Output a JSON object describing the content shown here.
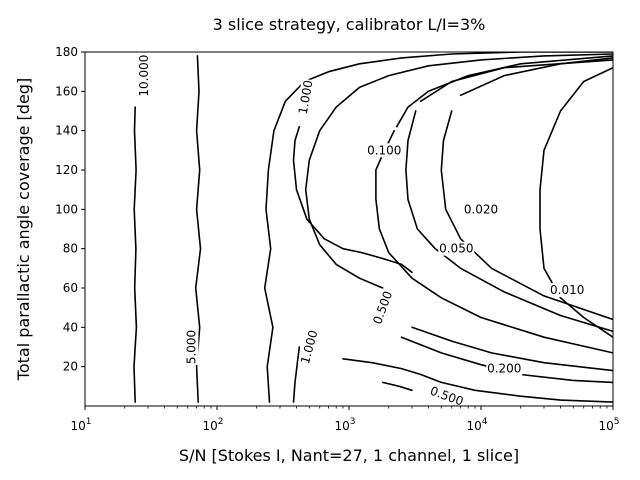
{
  "chart_data": {
    "type": "contour",
    "title": "3 slice strategy, calibrator L/I=3%",
    "xlabel": "S/N [Stokes I, Nant=27, 1 channel, 1 slice]",
    "ylabel": "Total parallactic angle coverage [deg]",
    "xscale": "log",
    "xlim": [
      10,
      100000
    ],
    "ylim": [
      0,
      180
    ],
    "xticks": [
      {
        "value": 10,
        "label": "10",
        "exp": "1"
      },
      {
        "value": 100,
        "label": "10",
        "exp": "2"
      },
      {
        "value": 1000,
        "label": "10",
        "exp": "3"
      },
      {
        "value": 10000,
        "label": "10",
        "exp": "4"
      },
      {
        "value": 100000,
        "label": "10",
        "exp": "5"
      }
    ],
    "yticks": [
      20,
      40,
      60,
      80,
      100,
      120,
      140,
      160,
      180
    ],
    "grid": false,
    "levels": [
      {
        "label": "10.000",
        "segments": [
          [
            [
              24,
              2
            ],
            [
              23.5,
              20
            ],
            [
              24.5,
              40
            ],
            [
              23.8,
              60
            ],
            [
              24.3,
              80
            ],
            [
              23.6,
              100
            ],
            [
              24.4,
              120
            ],
            [
              23.7,
              140
            ],
            [
              24,
              152
            ]
          ]
        ],
        "label_pos": {
          "x": 28,
          "y": 168
        },
        "label_rot": -90
      },
      {
        "label": "5.000",
        "segments": [
          [
            [
              72,
              2
            ],
            [
              70,
              20
            ],
            [
              74,
              40
            ],
            [
              69,
              60
            ],
            [
              75,
              80
            ],
            [
              70,
              100
            ],
            [
              74,
              120
            ],
            [
              70,
              140
            ],
            [
              73,
              160
            ],
            [
              71,
              178
            ]
          ]
        ],
        "label_pos": {
          "x": 64,
          "y": 30
        },
        "label_rot": -90
      },
      {
        "label": "1.000",
        "segments": [
          [
            [
              250,
              2
            ],
            [
              240,
              20
            ],
            [
              265,
              40
            ],
            [
              230,
              60
            ],
            [
              255,
              80
            ],
            [
              235,
              100
            ],
            [
              245,
              120
            ],
            [
              270,
              140
            ],
            [
              330,
              155
            ],
            [
              460,
              165
            ],
            [
              700,
              170
            ],
            [
              1200,
              174
            ],
            [
              2500,
              177
            ],
            [
              6000,
              179
            ],
            [
              20000,
              180
            ],
            [
              100000,
              180
            ]
          ],
          [
            [
              420,
              30
            ],
            [
              390,
              12
            ],
            [
              380,
              2
            ]
          ]
        ],
        "label_pos": [
          {
            "x": 470,
            "y": 157,
            "rot": -80
          },
          {
            "x": 500,
            "y": 30,
            "rot": -75
          }
        ]
      },
      {
        "label": "0.500",
        "segments": [
          [
            [
              3000,
              68
            ],
            [
              2500,
              72
            ],
            [
              1800,
              75
            ],
            [
              1250,
              78
            ],
            [
              900,
              80
            ],
            [
              650,
              85
            ],
            [
              480,
              95
            ],
            [
              400,
              110
            ],
            [
              380,
              125
            ],
            [
              390,
              135
            ],
            [
              420,
              142
            ]
          ],
          [
            [
              1800,
              60
            ],
            [
              1200,
              65
            ],
            [
              800,
              72
            ],
            [
              600,
              82
            ],
            [
              500,
              95
            ],
            [
              470,
              110
            ],
            [
              500,
              125
            ],
            [
              600,
              140
            ],
            [
              800,
              152
            ],
            [
              1200,
              162
            ],
            [
              2000,
              168
            ],
            [
              4000,
              173
            ],
            [
              10000,
              176
            ],
            [
              30000,
              178
            ],
            [
              100000,
              179
            ]
          ],
          [
            [
              900,
              24
            ],
            [
              1500,
              22
            ],
            [
              2500,
              19
            ],
            [
              3500,
              16
            ],
            [
              5000,
              12
            ],
            [
              9000,
              8
            ],
            [
              20000,
              5
            ],
            [
              40000,
              3
            ],
            [
              100000,
              2
            ]
          ],
          [
            [
              1800,
              12
            ],
            [
              2400,
              10
            ],
            [
              3000,
              8
            ]
          ]
        ],
        "label_pos": [
          {
            "x": 1800,
            "y": 50,
            "rot": -70
          },
          {
            "x": 5500,
            "y": 5,
            "rot": 20
          }
        ]
      },
      {
        "label": "0.200",
        "segments": [
          [
            [
              2500,
              35
            ],
            [
              5000,
              27
            ],
            [
              10000,
              21
            ],
            [
              20000,
              16
            ],
            [
              50000,
              13
            ],
            [
              100000,
              12
            ]
          ],
          [
            [
              3000,
              40
            ],
            [
              6000,
              33
            ],
            [
              12000,
              27
            ],
            [
              30000,
              22
            ],
            [
              100000,
              18
            ]
          ]
        ],
        "label_pos": {
          "x": 15000,
          "y": 19,
          "rot": 10
        }
      },
      {
        "label": "0.100",
        "segments": [
          [
            [
              2200,
              140
            ],
            [
              1800,
              128
            ],
            [
              1600,
              120
            ],
            [
              1600,
              105
            ],
            [
              1700,
              90
            ],
            [
              2000,
              78
            ],
            [
              3000,
              65
            ],
            [
              5000,
              55
            ],
            [
              10000,
              45
            ],
            [
              30000,
              35
            ],
            [
              100000,
              27
            ]
          ],
          [
            [
              2300,
              142
            ],
            [
              2800,
              152
            ],
            [
              4000,
              160
            ],
            [
              8000,
              168
            ],
            [
              20000,
              174
            ],
            [
              100000,
              178
            ]
          ]
        ],
        "label_pos": {
          "x": 1850,
          "y": 130,
          "rot": -85
        }
      },
      {
        "label": "0.050",
        "segments": [
          [
            [
              3200,
              150
            ],
            [
              2800,
              135
            ],
            [
              2700,
              120
            ],
            [
              2800,
              105
            ],
            [
              3300,
              90
            ],
            [
              4500,
              80
            ],
            [
              7000,
              70
            ],
            [
              15000,
              58
            ],
            [
              40000,
              46
            ],
            [
              100000,
              38
            ]
          ],
          [
            [
              3500,
              155
            ],
            [
              6000,
              165
            ],
            [
              15000,
              172
            ],
            [
              100000,
              176
            ]
          ]
        ],
        "label_pos": {
          "x": 6500,
          "y": 80,
          "rot": -70
        }
      },
      {
        "label": "0.020",
        "segments": [
          [
            [
              6000,
              150
            ],
            [
              5200,
              135
            ],
            [
              5000,
              120
            ],
            [
              5400,
              100
            ],
            [
              7000,
              85
            ],
            [
              12000,
              70
            ],
            [
              30000,
              56
            ],
            [
              100000,
              44
            ]
          ],
          [
            [
              7000,
              158
            ],
            [
              15000,
              168
            ],
            [
              40000,
              174
            ],
            [
              100000,
              177
            ]
          ]
        ],
        "label_pos": {
          "x": 10000,
          "y": 100,
          "rot": -75
        }
      },
      {
        "label": "0.010",
        "segments": [
          [
            [
              100000,
              35
            ],
            [
              60000,
              45
            ],
            [
              40000,
              55
            ],
            [
              30000,
              70
            ],
            [
              28000,
              90
            ],
            [
              28000,
              110
            ],
            [
              30000,
              130
            ],
            [
              40000,
              150
            ],
            [
              60000,
              165
            ],
            [
              100000,
              172
            ]
          ]
        ],
        "label_pos": {
          "x": 45000,
          "y": 59,
          "rot": 20
        }
      }
    ]
  }
}
